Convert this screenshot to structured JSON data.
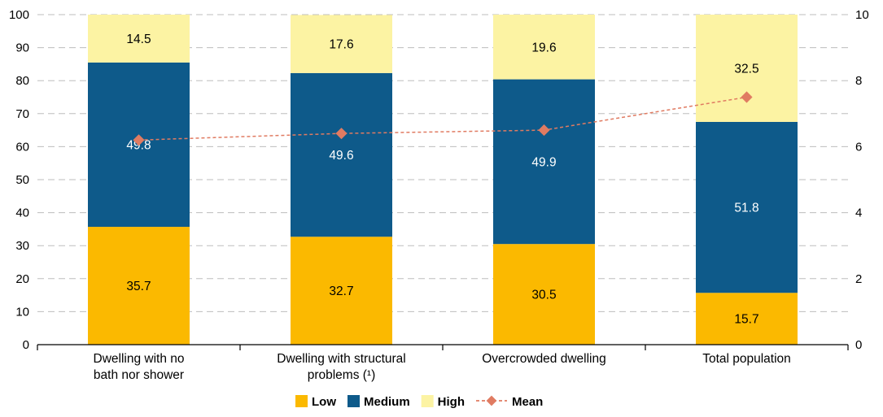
{
  "chart_data": {
    "type": "bar",
    "stacked": true,
    "categories": [
      [
        "Dwelling with no",
        "bath nor shower"
      ],
      [
        "Dwelling with structural",
        "problems (¹)"
      ],
      [
        "Overcrowded dwelling"
      ],
      [
        "Total population"
      ]
    ],
    "series": [
      {
        "name": "Low",
        "values": [
          35.7,
          32.7,
          30.5,
          15.7
        ],
        "color": "#FBB900",
        "label_color": "#000000"
      },
      {
        "name": "Medium",
        "values": [
          49.8,
          49.6,
          49.9,
          51.8
        ],
        "color": "#0E5A8A",
        "label_color": "#FFFFFF"
      },
      {
        "name": "High",
        "values": [
          14.5,
          17.6,
          19.6,
          32.5
        ],
        "color": "#FCF3A3",
        "label_color": "#000000"
      }
    ],
    "line_series": {
      "name": "Mean",
      "axis": "right",
      "values": [
        6.2,
        6.4,
        6.5,
        7.5
      ],
      "color": "#E07B62"
    },
    "ylim_left": [
      0,
      100
    ],
    "ylim_right": [
      0,
      10
    ],
    "yticks_left": [
      0,
      10,
      20,
      30,
      40,
      50,
      60,
      70,
      80,
      90,
      100
    ],
    "yticks_right": [
      0,
      2,
      4,
      6,
      8,
      10
    ],
    "grid": true,
    "legend_position": "bottom",
    "title": "",
    "xlabel": "",
    "ylabel": ""
  }
}
